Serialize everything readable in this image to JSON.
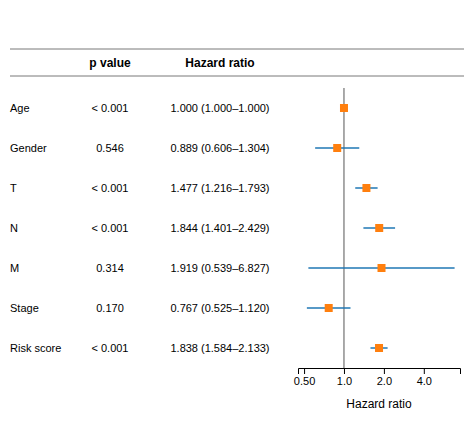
{
  "chart_data": {
    "type": "forest",
    "xlabel": "Hazard ratio",
    "categories": [
      "Age",
      "Gender",
      "T",
      "N",
      "M",
      "Stage",
      "Risk score"
    ],
    "values": [
      1.0,
      0.889,
      1.477,
      1.844,
      1.919,
      0.767,
      1.838
    ],
    "ci_lo": [
      1.0,
      0.606,
      1.216,
      1.401,
      0.539,
      0.525,
      1.584
    ],
    "ci_hi": [
      1.0,
      1.304,
      1.793,
      2.429,
      6.827,
      1.12,
      2.133
    ],
    "table_columns": [
      {
        "header": "p value",
        "values": [
          "< 0.001",
          "0.546",
          "< 0.001",
          "< 0.001",
          "0.314",
          "0.170",
          "< 0.001"
        ]
      },
      {
        "header": "Hazard ratio",
        "values": [
          "1.000 (1.000–1.000)",
          "0.889 (0.606–1.304)",
          "1.477 (1.216–1.793)",
          "1.844 (1.401–2.429)",
          "1.919 (0.539–6.827)",
          "0.767 (0.525–1.120)",
          "1.838 (1.584–2.133)"
        ]
      }
    ],
    "log": "x",
    "xlim": [
      0.45,
      7.5
    ],
    "xticks": [
      {
        "value": 0.5,
        "label": "0.50"
      },
      {
        "value": 1.0,
        "label": "1.0"
      },
      {
        "value": 2.0,
        "label": "2.0"
      },
      {
        "value": 4.0,
        "label": "4.0"
      }
    ],
    "reference_line": 1.0
  }
}
